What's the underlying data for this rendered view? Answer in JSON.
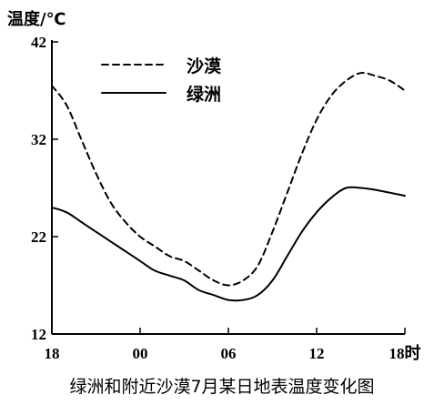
{
  "chart_data": {
    "type": "line",
    "ylabel": "温度/℃",
    "xtick_labels": [
      "18",
      "00",
      "06",
      "12",
      "18"
    ],
    "xtick_suffix": "时",
    "ytick_labels": [
      "12",
      "22",
      "32",
      "42"
    ],
    "ylim": [
      12,
      42
    ],
    "xlim": [
      18,
      42
    ],
    "xticks": [
      18,
      24,
      30,
      36,
      42
    ],
    "yticks": [
      12,
      22,
      32,
      42
    ],
    "caption": "绿洲和附近沙漠7月某日地表温度变化图",
    "legend_position": "top-left",
    "series": [
      {
        "name": "沙漠",
        "style": "dashed",
        "color": "#000000",
        "x": [
          18,
          19,
          20,
          21,
          22,
          23,
          24,
          25,
          26,
          27,
          28,
          29,
          30,
          31,
          32,
          33,
          34,
          35,
          36,
          37,
          38,
          39,
          40,
          41,
          42
        ],
        "y": [
          37.5,
          35.5,
          32,
          28.5,
          25.5,
          23.5,
          22,
          21,
          20,
          19.5,
          18.5,
          17.5,
          17,
          17.5,
          19,
          22.5,
          26.5,
          30.5,
          34,
          36.5,
          38,
          38.8,
          38.5,
          38,
          37
        ]
      },
      {
        "name": "绿洲",
        "style": "solid",
        "color": "#000000",
        "x": [
          18,
          19,
          20,
          21,
          22,
          23,
          24,
          25,
          26,
          27,
          28,
          29,
          30,
          31,
          32,
          33,
          34,
          35,
          36,
          37,
          38,
          39,
          40,
          41,
          42
        ],
        "y": [
          25,
          24.5,
          23.5,
          22.5,
          21.5,
          20.5,
          19.5,
          18.5,
          18,
          17.5,
          16.5,
          16,
          15.5,
          15.5,
          16,
          17.5,
          20,
          22.5,
          24.5,
          26,
          27,
          27,
          26.8,
          26.5,
          26.2
        ]
      }
    ]
  }
}
